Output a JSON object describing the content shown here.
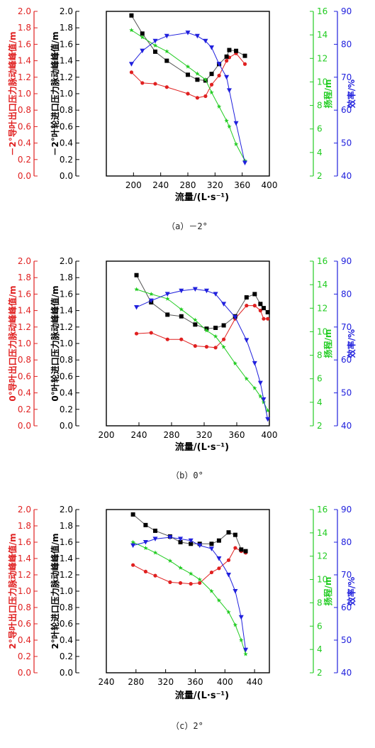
{
  "chart_data": [
    {
      "type": "line",
      "caption": "（a）－2°",
      "xlabel": "流量/(L·s⁻¹)",
      "xlim": [
        160,
        400
      ],
      "xticks": [
        "200",
        "240",
        "280",
        "320",
        "360",
        "400"
      ],
      "axes": {
        "red": {
          "label": "－2°导叶出口压力脉动峰峰值/m",
          "ylim": [
            0,
            2.0
          ],
          "ticks": [
            "0.0",
            "0.2",
            "0.4",
            "0.6",
            "0.8",
            "1.0",
            "1.2",
            "1.4",
            "1.6",
            "1.8",
            "2.0"
          ],
          "color": "#e02020"
        },
        "black": {
          "label": "－2°叶轮进口压力脉动峰峰值/m",
          "ylim": [
            0,
            2.0
          ],
          "ticks": [
            "0.0",
            "0.2",
            "0.4",
            "0.6",
            "0.8",
            "1.0",
            "1.2",
            "1.4",
            "1.6",
            "1.8",
            "2.0"
          ],
          "color": "#000000"
        },
        "green": {
          "label": "扬程/m",
          "ylim": [
            2,
            16
          ],
          "ticks": [
            "2",
            "4",
            "6",
            "8",
            "10",
            "12",
            "14",
            "16"
          ],
          "color": "#22cc22"
        },
        "blue": {
          "label": "效率/%",
          "ylim": [
            40,
            90
          ],
          "ticks": [
            "40",
            "50",
            "60",
            "70",
            "80",
            "90"
          ],
          "color": "#2020dd"
        }
      },
      "series": [
        {
          "axis": "red",
          "marker": "circle",
          "x": [
            197,
            213,
            232,
            249,
            280,
            294,
            306,
            315,
            326,
            337,
            341,
            351,
            364
          ],
          "y": [
            1.26,
            1.13,
            1.12,
            1.08,
            1.0,
            0.95,
            0.97,
            1.11,
            1.22,
            1.4,
            1.44,
            1.49,
            1.36
          ]
        },
        {
          "axis": "black",
          "marker": "square",
          "x": [
            197,
            213,
            232,
            249,
            280,
            294,
            306,
            315,
            326,
            337,
            341,
            351,
            364
          ],
          "y": [
            1.95,
            1.73,
            1.51,
            1.4,
            1.23,
            1.17,
            1.16,
            1.24,
            1.36,
            1.45,
            1.53,
            1.52,
            1.46
          ]
        },
        {
          "axis": "green",
          "marker": "star",
          "x": [
            197,
            213,
            232,
            249,
            280,
            294,
            306,
            315,
            326,
            337,
            341,
            351,
            364
          ],
          "y": [
            14.4,
            13.8,
            13.1,
            12.6,
            11.3,
            10.7,
            10.2,
            9.1,
            7.9,
            6.7,
            6.2,
            4.7,
            3.3
          ]
        },
        {
          "axis": "blue",
          "marker": "triangle",
          "x": [
            197,
            213,
            232,
            249,
            280,
            294,
            306,
            315,
            326,
            337,
            341,
            351,
            364
          ],
          "y": [
            74,
            78,
            81,
            82.5,
            83.5,
            82.5,
            81,
            79,
            74,
            70,
            66,
            56,
            44
          ]
        }
      ]
    },
    {
      "type": "line",
      "caption": "（b）0°",
      "xlabel": "流量/(L·s⁻¹)",
      "xlim": [
        200,
        400
      ],
      "xticks": [
        "200",
        "240",
        "280",
        "320",
        "360",
        "400"
      ],
      "axes": {
        "red": {
          "label": "0°导叶出口压力脉动峰峰值/m",
          "ylim": [
            0,
            2.0
          ],
          "ticks": [
            "0.0",
            "0.2",
            "0.4",
            "0.6",
            "0.8",
            "1.0",
            "1.2",
            "1.4",
            "1.6",
            "1.8",
            "2.0"
          ],
          "color": "#e02020"
        },
        "black": {
          "label": "0°叶轮进口压力脉动峰峰值/m",
          "ylim": [
            0,
            2.0
          ],
          "ticks": [
            "0.0",
            "0.2",
            "0.4",
            "0.6",
            "0.8",
            "1.0",
            "1.2",
            "1.4",
            "1.6",
            "1.8",
            "2.0"
          ],
          "color": "#000000"
        },
        "green": {
          "label": "扬程/m",
          "ylim": [
            2,
            16
          ],
          "ticks": [
            "2",
            "4",
            "6",
            "8",
            "10",
            "12",
            "14",
            "16"
          ],
          "color": "#22cc22"
        },
        "blue": {
          "label": "效率/%",
          "ylim": [
            40,
            90
          ],
          "ticks": [
            "40",
            "50",
            "60",
            "70",
            "80",
            "90"
          ],
          "color": "#2020dd"
        }
      },
      "series": [
        {
          "axis": "red",
          "marker": "circle",
          "x": [
            237,
            255,
            275,
            292,
            309,
            323,
            334,
            344,
            358,
            372,
            382,
            389,
            393,
            398
          ],
          "y": [
            1.12,
            1.13,
            1.05,
            1.05,
            0.97,
            0.96,
            0.95,
            1.05,
            1.3,
            1.46,
            1.46,
            1.4,
            1.3,
            1.3
          ]
        },
        {
          "axis": "black",
          "marker": "square",
          "x": [
            237,
            255,
            275,
            292,
            309,
            323,
            334,
            344,
            358,
            372,
            382,
            389,
            393,
            398
          ],
          "y": [
            1.83,
            1.5,
            1.35,
            1.33,
            1.23,
            1.18,
            1.19,
            1.22,
            1.33,
            1.56,
            1.6,
            1.48,
            1.43,
            1.38
          ]
        },
        {
          "axis": "green",
          "marker": "star",
          "x": [
            237,
            255,
            275,
            292,
            309,
            323,
            334,
            344,
            358,
            372,
            382,
            389,
            393,
            398
          ],
          "y": [
            13.6,
            13.2,
            12.8,
            11.9,
            11.0,
            10.1,
            9.6,
            8.7,
            7.3,
            6.0,
            5.2,
            4.5,
            4.0,
            3.3
          ]
        },
        {
          "axis": "blue",
          "marker": "triangle",
          "x": [
            237,
            255,
            275,
            292,
            309,
            323,
            334,
            344,
            358,
            372,
            382,
            389,
            393,
            398
          ],
          "y": [
            76,
            78,
            80,
            81,
            81.5,
            81,
            80,
            77,
            73,
            66,
            59,
            53,
            48,
            42
          ]
        }
      ]
    },
    {
      "type": "line",
      "caption": "（c）2°",
      "xlabel": "流量/(L·s⁻¹)",
      "xlim": [
        240,
        460
      ],
      "xticks": [
        "240",
        "280",
        "320",
        "360",
        "400",
        "440"
      ],
      "axes": {
        "red": {
          "label": "2°导叶出口压力脉动峰峰值/m",
          "ylim": [
            0,
            2.0
          ],
          "ticks": [
            "0.0",
            "0.2",
            "0.4",
            "0.6",
            "0.8",
            "1.0",
            "1.2",
            "1.4",
            "1.6",
            "1.8",
            "2.0"
          ],
          "color": "#e02020"
        },
        "black": {
          "label": "2°叶轮进口压力脉动峰峰值/m",
          "ylim": [
            0,
            2.0
          ],
          "ticks": [
            "0.0",
            "0.2",
            "0.4",
            "0.6",
            "0.8",
            "1.0",
            "1.2",
            "1.4",
            "1.6",
            "1.8",
            "2.0"
          ],
          "color": "#000000"
        },
        "green": {
          "label": "扬程/m",
          "ylim": [
            2,
            16
          ],
          "ticks": [
            "2",
            "4",
            "6",
            "8",
            "10",
            "12",
            "14",
            "16"
          ],
          "color": "#22cc22"
        },
        "blue": {
          "label": "效率/%",
          "ylim": [
            40,
            90
          ],
          "ticks": [
            "40",
            "50",
            "60",
            "70",
            "80",
            "90"
          ],
          "color": "#2020dd"
        }
      },
      "series": [
        {
          "axis": "red",
          "marker": "circle",
          "x": [
            276,
            293,
            306,
            326,
            340,
            354,
            366,
            382,
            392,
            405,
            414,
            422,
            428
          ],
          "y": [
            1.32,
            1.24,
            1.19,
            1.11,
            1.1,
            1.09,
            1.1,
            1.23,
            1.28,
            1.38,
            1.53,
            1.49,
            1.47
          ]
        },
        {
          "axis": "black",
          "marker": "square",
          "x": [
            276,
            293,
            306,
            326,
            340,
            354,
            366,
            382,
            392,
            405,
            414,
            422,
            428
          ],
          "y": [
            1.94,
            1.81,
            1.74,
            1.67,
            1.6,
            1.58,
            1.58,
            1.58,
            1.62,
            1.72,
            1.69,
            1.51,
            1.49
          ]
        },
        {
          "axis": "green",
          "marker": "star",
          "x": [
            276,
            293,
            306,
            326,
            340,
            354,
            366,
            382,
            392,
            405,
            414,
            422,
            428
          ],
          "y": [
            13.2,
            12.7,
            12.3,
            11.6,
            11.0,
            10.5,
            10.0,
            9.0,
            8.2,
            7.2,
            6.1,
            4.8,
            3.6
          ]
        },
        {
          "axis": "blue",
          "marker": "triangle",
          "x": [
            276,
            293,
            306,
            326,
            340,
            354,
            366,
            382,
            392,
            405,
            414,
            422,
            428
          ],
          "y": [
            79,
            80,
            81,
            81.5,
            81,
            80.5,
            79,
            78,
            75,
            70,
            65,
            57,
            47
          ]
        }
      ]
    }
  ]
}
